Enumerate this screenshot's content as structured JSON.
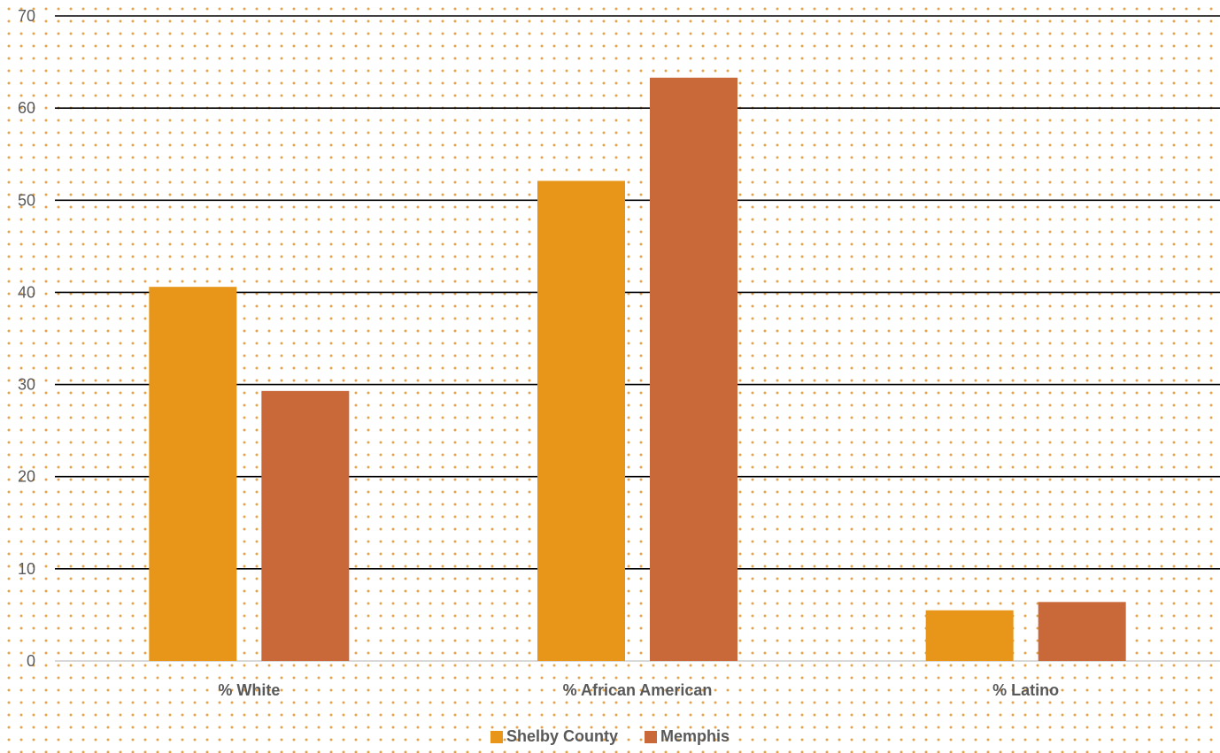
{
  "colors": {
    "shelby": "#e8961a",
    "memphis": "#c9693a",
    "gridline": "#000000",
    "baseline": "#d9d9d9"
  },
  "chart_data": {
    "type": "bar",
    "categories": [
      "% White",
      "% African American",
      "% Latino"
    ],
    "series": [
      {
        "name": "Shelby County",
        "values": [
          40.6,
          52.1,
          5.5
        ],
        "color": "#e8961a"
      },
      {
        "name": "Memphis",
        "values": [
          29.3,
          63.3,
          6.4
        ],
        "color": "#c9693a"
      }
    ],
    "ylim": [
      0,
      70
    ],
    "yticks": [
      0,
      10,
      20,
      30,
      40,
      50,
      60,
      70
    ],
    "grid": true,
    "legend_position": "bottom"
  },
  "legend": {
    "shelby_label": "Shelby County",
    "memphis_label": "Memphis"
  }
}
